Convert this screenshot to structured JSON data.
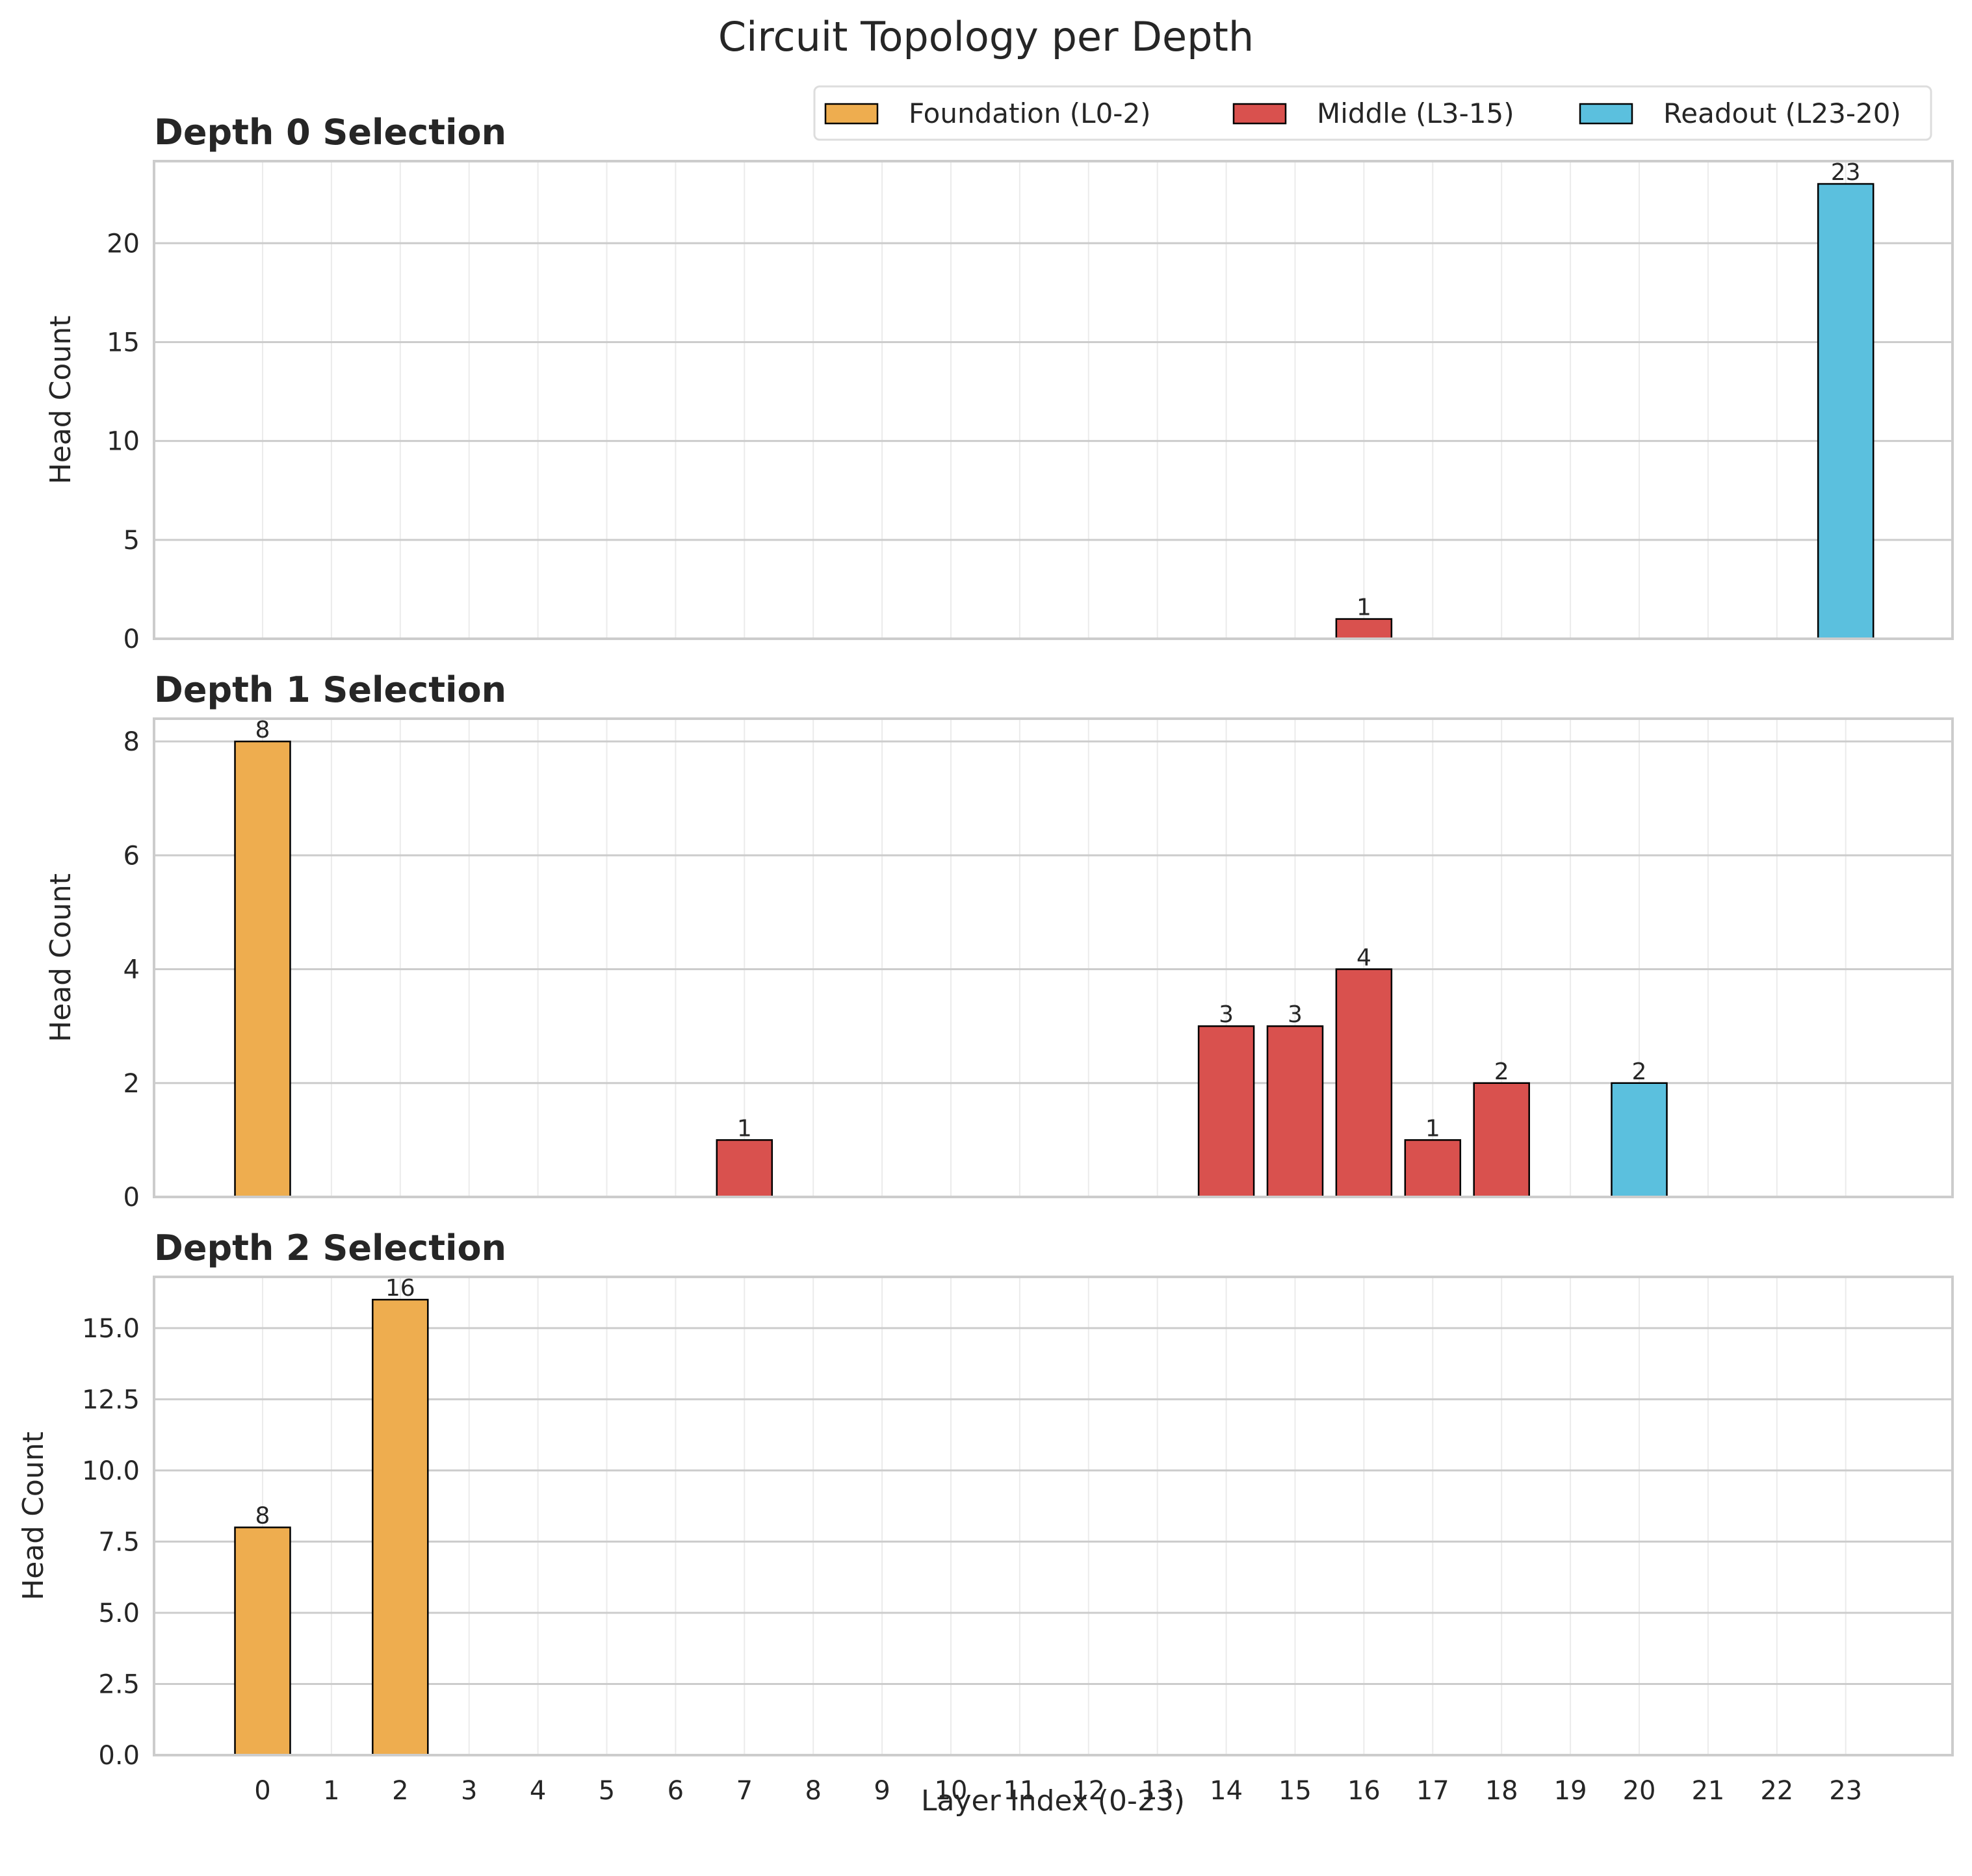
{
  "chart_data": {
    "type": "bar",
    "title": "Circuit Topology per Depth",
    "xlabel": "Layer Index (0-23)",
    "ylabel": "Head Count",
    "categories": [
      "0",
      "1",
      "2",
      "3",
      "4",
      "5",
      "6",
      "7",
      "8",
      "9",
      "10",
      "11",
      "12",
      "13",
      "14",
      "15",
      "16",
      "17",
      "18",
      "19",
      "20",
      "21",
      "22",
      "23"
    ],
    "colors": {
      "foundation": "#EEAD4F",
      "middle": "#D9514E",
      "readout": "#5BC0DE",
      "edge": "#000000",
      "grid": "#CCCCCC"
    },
    "legend": {
      "placement": "top-right",
      "entries": [
        {
          "label": "Foundation (L0-2)",
          "group": "foundation"
        },
        {
          "label": "Middle (L3-15)",
          "group": "middle"
        },
        {
          "label": "Readout (L23-20)",
          "group": "readout"
        }
      ]
    },
    "panels": [
      {
        "title": "Depth 0 Selection",
        "ylim": [
          0,
          24.15
        ],
        "yticks": [
          0,
          5,
          10,
          15,
          20
        ],
        "ytick_labels": [
          "0",
          "5",
          "10",
          "15",
          "20"
        ],
        "bars": [
          {
            "layer": 16,
            "value": 1,
            "group": "middle",
            "label": "1"
          },
          {
            "layer": 23,
            "value": 23,
            "group": "readout",
            "label": "23"
          }
        ]
      },
      {
        "title": "Depth 1 Selection",
        "ylim": [
          0,
          8.4
        ],
        "yticks": [
          0,
          2,
          4,
          6,
          8
        ],
        "ytick_labels": [
          "0",
          "2",
          "4",
          "6",
          "8"
        ],
        "bars": [
          {
            "layer": 0,
            "value": 8,
            "group": "foundation",
            "label": "8"
          },
          {
            "layer": 7,
            "value": 1,
            "group": "middle",
            "label": "1"
          },
          {
            "layer": 14,
            "value": 3,
            "group": "middle",
            "label": "3"
          },
          {
            "layer": 15,
            "value": 3,
            "group": "middle",
            "label": "3"
          },
          {
            "layer": 16,
            "value": 4,
            "group": "middle",
            "label": "4"
          },
          {
            "layer": 17,
            "value": 1,
            "group": "middle",
            "label": "1"
          },
          {
            "layer": 18,
            "value": 2,
            "group": "middle",
            "label": "2"
          },
          {
            "layer": 20,
            "value": 2,
            "group": "readout",
            "label": "2"
          }
        ]
      },
      {
        "title": "Depth 2 Selection",
        "ylim": [
          0,
          16.8
        ],
        "yticks": [
          0,
          2.5,
          5,
          7.5,
          10,
          12.5,
          15
        ],
        "ytick_labels": [
          "0.0",
          "2.5",
          "5.0",
          "7.5",
          "10.0",
          "12.5",
          "15.0"
        ],
        "bars": [
          {
            "layer": 0,
            "value": 8,
            "group": "foundation",
            "label": "8"
          },
          {
            "layer": 2,
            "value": 16,
            "group": "foundation",
            "label": "16"
          }
        ]
      }
    ]
  }
}
